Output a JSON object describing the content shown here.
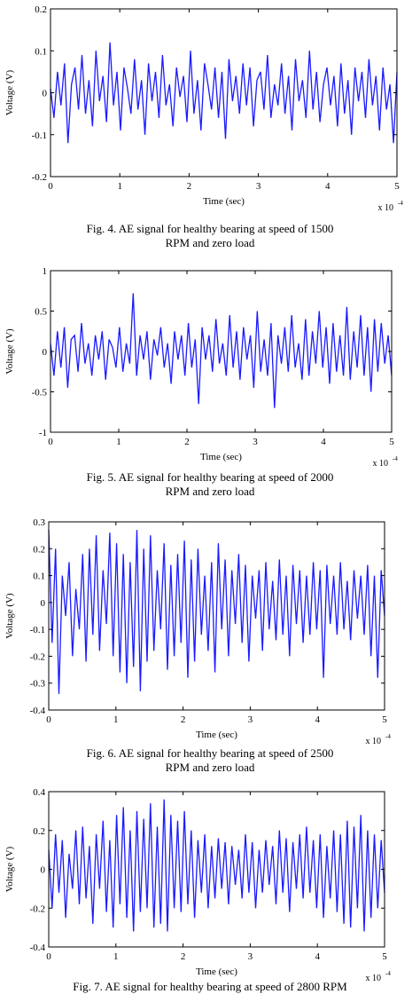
{
  "line_color": "#1a1aff",
  "figures": [
    {
      "caption_line1": "Fig.  4.  AE signal for healthy bearing at speed of 1500",
      "caption_line2": "RPM and zero load",
      "xlabel": "Time (sec)",
      "ylabel": "Voltage (V)",
      "xscale": "x 10",
      "yticks": [
        "-0.2",
        "-0.1",
        "0",
        "0.1",
        "0.2"
      ],
      "xticks": [
        "0",
        "1",
        "2",
        "3",
        "4",
        "5"
      ]
    },
    {
      "caption_line1": "Fig.  5.  AE signal for healthy bearing at speed of  2000",
      "caption_line2": "RPM and zero load",
      "xlabel": "Time (sec)",
      "ylabel": "Voltage (V)",
      "xscale": "x 10",
      "yticks": [
        "-1",
        "-0.5",
        "0",
        "0.5",
        "1"
      ],
      "xticks": [
        "0",
        "1",
        "2",
        "3",
        "4",
        "5"
      ]
    },
    {
      "caption_line1": "Fig.  6.  AE signal for healthy bearing at speed of 2500",
      "caption_line2": "RPM and zero load",
      "xlabel": "Time (sec)",
      "ylabel": "Voltage (V)",
      "xscale": "x 10",
      "yticks": [
        "-0.4",
        "-0.3",
        "-0.2",
        "-0.1",
        "0",
        "0.1",
        "0.2",
        "0.3"
      ],
      "xticks": [
        "0",
        "1",
        "2",
        "3",
        "4",
        "5"
      ]
    },
    {
      "caption_line1": "Fig.  7.  AE signal for healthy bearing at speed of 2800 RPM",
      "caption_line2": "",
      "xlabel": "Time (sec)",
      "ylabel": "Voltage (V)",
      "xscale": "x 10",
      "yticks": [
        "-0.4",
        "-0.2",
        "0",
        "0.2",
        "0.4"
      ],
      "xticks": [
        "0",
        "1",
        "2",
        "3",
        "4",
        "5"
      ]
    }
  ],
  "chart_data": [
    {
      "type": "line",
      "xlabel": "Time (sec)",
      "ylabel": "Voltage (V)",
      "x_multiplier": "x 10^-4",
      "xlim": [
        0,
        5
      ],
      "ylim": [
        -0.2,
        0.2
      ],
      "grid": false,
      "series": [
        {
          "x_start": 0,
          "x_end": 5,
          "values": [
            0.01,
            -0.06,
            0.05,
            -0.03,
            0.07,
            -0.12,
            0.02,
            0.06,
            -0.04,
            0.09,
            -0.05,
            0.03,
            -0.08,
            0.1,
            -0.02,
            0.04,
            -0.07,
            0.12,
            -0.03,
            0.05,
            -0.09,
            0.06,
            0.01,
            -0.05,
            0.08,
            -0.04,
            0.03,
            -0.1,
            0.07,
            -0.02,
            0.05,
            -0.06,
            0.09,
            -0.03,
            0.02,
            -0.08,
            0.06,
            -0.01,
            0.04,
            -0.07,
            0.1,
            -0.05,
            0.03,
            -0.09,
            0.07,
            0.02,
            -0.04,
            0.06,
            -0.06,
            0.05,
            -0.11,
            0.08,
            -0.02,
            0.04,
            -0.05,
            0.07,
            -0.03,
            0.06,
            -0.08,
            0.03,
            0.05,
            -0.04,
            0.09,
            -0.06,
            0.02,
            -0.03,
            0.07,
            -0.05,
            0.04,
            -0.09,
            0.08,
            -0.02,
            0.03,
            -0.06,
            0.1,
            -0.04,
            0.05,
            -0.07,
            0.02,
            0.06,
            -0.03,
            0.04,
            -0.08,
            0.07,
            -0.05,
            0.03,
            -0.1,
            0.06,
            -0.02,
            0.05,
            -0.06,
            0.08,
            -0.03,
            0.04,
            -0.09,
            0.06,
            -0.04,
            0.02,
            -0.12,
            0.05
          ]
        }
      ]
    },
    {
      "type": "line",
      "xlabel": "Time (sec)",
      "ylabel": "Voltage (V)",
      "x_multiplier": "x 10^-4",
      "xlim": [
        0,
        5
      ],
      "ylim": [
        -1,
        1
      ],
      "grid": false,
      "series": [
        {
          "x_start": 0,
          "x_end": 5,
          "values": [
            0.1,
            -0.3,
            0.25,
            -0.2,
            0.3,
            -0.45,
            0.15,
            0.2,
            -0.25,
            0.35,
            -0.15,
            0.1,
            -0.3,
            0.2,
            -0.1,
            0.25,
            -0.35,
            0.15,
            0.05,
            -0.2,
            0.3,
            -0.25,
            0.1,
            -0.15,
            0.72,
            -0.3,
            0.2,
            -0.1,
            0.25,
            -0.35,
            0.15,
            -0.05,
            0.3,
            -0.2,
            0.1,
            -0.4,
            0.25,
            -0.1,
            0.2,
            -0.3,
            0.35,
            -0.2,
            0.15,
            -0.65,
            0.3,
            -0.1,
            0.2,
            -0.25,
            0.4,
            -0.15,
            0.1,
            -0.3,
            0.45,
            -0.2,
            0.25,
            -0.35,
            0.3,
            -0.1,
            0.2,
            -0.45,
            0.5,
            -0.25,
            0.15,
            -0.3,
            0.35,
            -0.7,
            0.2,
            -0.15,
            0.3,
            -0.25,
            0.45,
            -0.2,
            0.1,
            -0.35,
            0.4,
            -0.3,
            0.25,
            -0.15,
            0.5,
            -0.2,
            0.3,
            -0.4,
            0.35,
            -0.25,
            0.2,
            -0.3,
            0.55,
            -0.35,
            0.25,
            -0.2,
            0.45,
            -0.3,
            0.3,
            -0.5,
            0.4,
            -0.25,
            0.35,
            -0.15,
            0.2,
            -0.3
          ]
        }
      ]
    },
    {
      "type": "line",
      "xlabel": "Time (sec)",
      "ylabel": "Voltage (V)",
      "x_multiplier": "x 10^-4",
      "xlim": [
        0,
        5
      ],
      "ylim": [
        -0.4,
        0.3
      ],
      "grid": false,
      "series": [
        {
          "x_start": 0,
          "x_end": 5,
          "values": [
            0.27,
            -0.15,
            0.2,
            -0.34,
            0.1,
            -0.05,
            0.15,
            -0.2,
            0.05,
            -0.1,
            0.18,
            -0.22,
            0.2,
            -0.12,
            0.25,
            -0.18,
            0.12,
            -0.08,
            0.26,
            -0.2,
            0.22,
            -0.26,
            0.18,
            -0.3,
            0.15,
            -0.24,
            0.27,
            -0.33,
            0.2,
            -0.22,
            0.25,
            -0.18,
            0.12,
            -0.1,
            0.22,
            -0.25,
            0.14,
            -0.2,
            0.18,
            -0.15,
            0.23,
            -0.28,
            0.16,
            -0.22,
            0.2,
            -0.12,
            0.1,
            -0.18,
            0.15,
            -0.26,
            0.22,
            -0.1,
            0.16,
            -0.2,
            0.12,
            -0.08,
            0.18,
            -0.15,
            0.14,
            -0.22,
            0.1,
            -0.06,
            0.12,
            -0.18,
            0.15,
            -0.1,
            0.08,
            -0.14,
            0.16,
            -0.12,
            0.1,
            -0.2,
            0.14,
            -0.08,
            0.12,
            -0.15,
            0.1,
            -0.12,
            0.15,
            -0.1,
            0.12,
            -0.28,
            0.14,
            -0.08,
            0.1,
            -0.12,
            0.15,
            -0.1,
            0.08,
            -0.14,
            0.12,
            -0.06,
            0.1,
            -0.12,
            0.14,
            -0.2,
            0.1,
            -0.28,
            0.12,
            -0.05
          ]
        }
      ]
    },
    {
      "type": "line",
      "xlabel": "Time (sec)",
      "ylabel": "Voltage (V)",
      "x_multiplier": "x 10^-4",
      "xlim": [
        0,
        5
      ],
      "ylim": [
        -0.4,
        0.4
      ],
      "grid": false,
      "series": [
        {
          "x_start": 0,
          "x_end": 5,
          "values": [
            0.1,
            -0.2,
            0.18,
            -0.12,
            0.15,
            -0.25,
            0.08,
            -0.1,
            0.2,
            -0.18,
            0.22,
            -0.15,
            0.12,
            -0.28,
            0.18,
            -0.1,
            0.25,
            -0.22,
            0.15,
            -0.3,
            0.28,
            -0.18,
            0.32,
            -0.25,
            0.2,
            -0.32,
            0.3,
            -0.22,
            0.26,
            -0.2,
            0.34,
            -0.3,
            0.22,
            -0.28,
            0.36,
            -0.32,
            0.28,
            -0.2,
            0.25,
            -0.22,
            0.3,
            -0.18,
            0.2,
            -0.25,
            0.15,
            -0.12,
            0.18,
            -0.2,
            0.12,
            -0.15,
            0.16,
            -0.1,
            0.14,
            -0.18,
            0.12,
            -0.08,
            0.1,
            -0.15,
            0.18,
            -0.12,
            0.14,
            -0.2,
            0.1,
            -0.12,
            0.15,
            -0.08,
            0.12,
            -0.18,
            0.2,
            -0.12,
            0.16,
            -0.22,
            0.14,
            -0.1,
            0.18,
            -0.15,
            0.22,
            -0.12,
            0.15,
            -0.2,
            0.18,
            -0.25,
            0.12,
            -0.15,
            0.2,
            -0.22,
            0.18,
            -0.28,
            0.25,
            -0.3,
            0.22,
            -0.2,
            0.28,
            -0.32,
            0.2,
            -0.25,
            0.18,
            -0.2,
            0.15,
            -0.12
          ]
        }
      ]
    }
  ]
}
